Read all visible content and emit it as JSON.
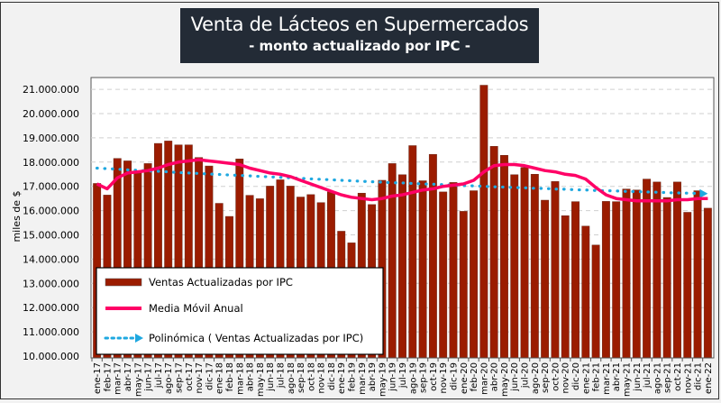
{
  "chart_data": {
    "type": "bar",
    "title": "Venta de Lácteos en Supermercados",
    "subtitle": "- monto actualizado por IPC -",
    "xlabel": "",
    "ylabel": "miles de $",
    "ylim": [
      10000000,
      21400000
    ],
    "yticks": [
      "10.000.000",
      "11.000.000",
      "12.000.000",
      "13.000.000",
      "14.000.000",
      "15.000.000",
      "16.000.000",
      "17.000.000",
      "18.000.000",
      "19.000.000",
      "20.000.000",
      "21.000.000"
    ],
    "grid": true,
    "legend_position": "bottom-left",
    "categories": [
      "ene-17",
      "feb-17",
      "mar-17",
      "abr-17",
      "may-17",
      "jun-17",
      "jul-17",
      "ago-17",
      "sep-17",
      "oct-17",
      "nov-17",
      "dic-17",
      "ene-18",
      "feb-18",
      "mar-18",
      "abr-18",
      "may-18",
      "jun-18",
      "jul-18",
      "ago-18",
      "sep-18",
      "oct-18",
      "nov-18",
      "dic-18",
      "ene-19",
      "feb-19",
      "mar-19",
      "abr-19",
      "may-19",
      "jun-19",
      "jul-19",
      "ago-19",
      "sep-19",
      "oct-19",
      "nov-19",
      "dic-19",
      "ene-20",
      "feb-20",
      "mar-20",
      "abr-20",
      "may-20",
      "jun-20",
      "jul-20",
      "ago-20",
      "sep-20",
      "oct-20",
      "nov-20",
      "dic-20",
      "ene-21",
      "feb-21",
      "mar-21",
      "abr-21",
      "may-21",
      "jun-21",
      "jul-21",
      "ago-21",
      "sep-21",
      "oct-21",
      "nov-21",
      "dic-21",
      "ene-22"
    ],
    "series": [
      {
        "name": "Ventas Actualizadas por IPC",
        "type": "bar",
        "color": "#9b1c00",
        "values": [
          17120000,
          16640000,
          18150000,
          18050000,
          17600000,
          17940000,
          18770000,
          18870000,
          18710000,
          18710000,
          18190000,
          17840000,
          16300000,
          15760000,
          18130000,
          16630000,
          16490000,
          17010000,
          17270000,
          17010000,
          16560000,
          16660000,
          16330000,
          16770000,
          15150000,
          14670000,
          16720000,
          16250000,
          17250000,
          17940000,
          17480000,
          18680000,
          17230000,
          18320000,
          16770000,
          17160000,
          15970000,
          16820000,
          21170000,
          18650000,
          18280000,
          17480000,
          17780000,
          17500000,
          16430000,
          17200000,
          15790000,
          16370000,
          15360000,
          14580000,
          16380000,
          16370000,
          16890000,
          16850000,
          17300000,
          17180000,
          16540000,
          17180000,
          15930000,
          16820000,
          16100000
        ]
      },
      {
        "name": "Media Móvil Anual",
        "type": "line",
        "color": "#ff0066",
        "values": [
          17100000,
          16900000,
          17350000,
          17550000,
          17600000,
          17650000,
          17750000,
          17900000,
          18000000,
          18050000,
          18100000,
          18050000,
          18000000,
          17950000,
          17900000,
          17750000,
          17650000,
          17550000,
          17500000,
          17400000,
          17250000,
          17100000,
          16950000,
          16800000,
          16650000,
          16550000,
          16500000,
          16450000,
          16500000,
          16600000,
          16650000,
          16750000,
          16850000,
          16900000,
          17000000,
          17050000,
          17100000,
          17250000,
          17600000,
          17850000,
          17900000,
          17900000,
          17850000,
          17750000,
          17650000,
          17600000,
          17500000,
          17450000,
          17300000,
          16950000,
          16650000,
          16500000,
          16450000,
          16400000,
          16400000,
          16400000,
          16400000,
          16450000,
          16450000,
          16500000,
          16500000
        ]
      },
      {
        "name": "Polinómica ( Ventas Actualizadas por IPC)",
        "type": "trendline",
        "color": "#1fa8e0",
        "values": [
          17750000,
          17730000,
          17710000,
          17680000,
          17660000,
          17640000,
          17620000,
          17600000,
          17570000,
          17550000,
          17530000,
          17510000,
          17490000,
          17470000,
          17450000,
          17430000,
          17410000,
          17390000,
          17370000,
          17350000,
          17330000,
          17310000,
          17290000,
          17270000,
          17250000,
          17230000,
          17210000,
          17190000,
          17170000,
          17150000,
          17140000,
          17120000,
          17100000,
          17090000,
          17070000,
          17050000,
          17030000,
          17020000,
          17000000,
          16980000,
          16970000,
          16950000,
          16940000,
          16920000,
          16910000,
          16890000,
          16880000,
          16860000,
          16850000,
          16830000,
          16820000,
          16810000,
          16790000,
          16780000,
          16770000,
          16760000,
          16740000,
          16730000,
          16720000,
          16710000,
          16700000
        ]
      }
    ]
  }
}
